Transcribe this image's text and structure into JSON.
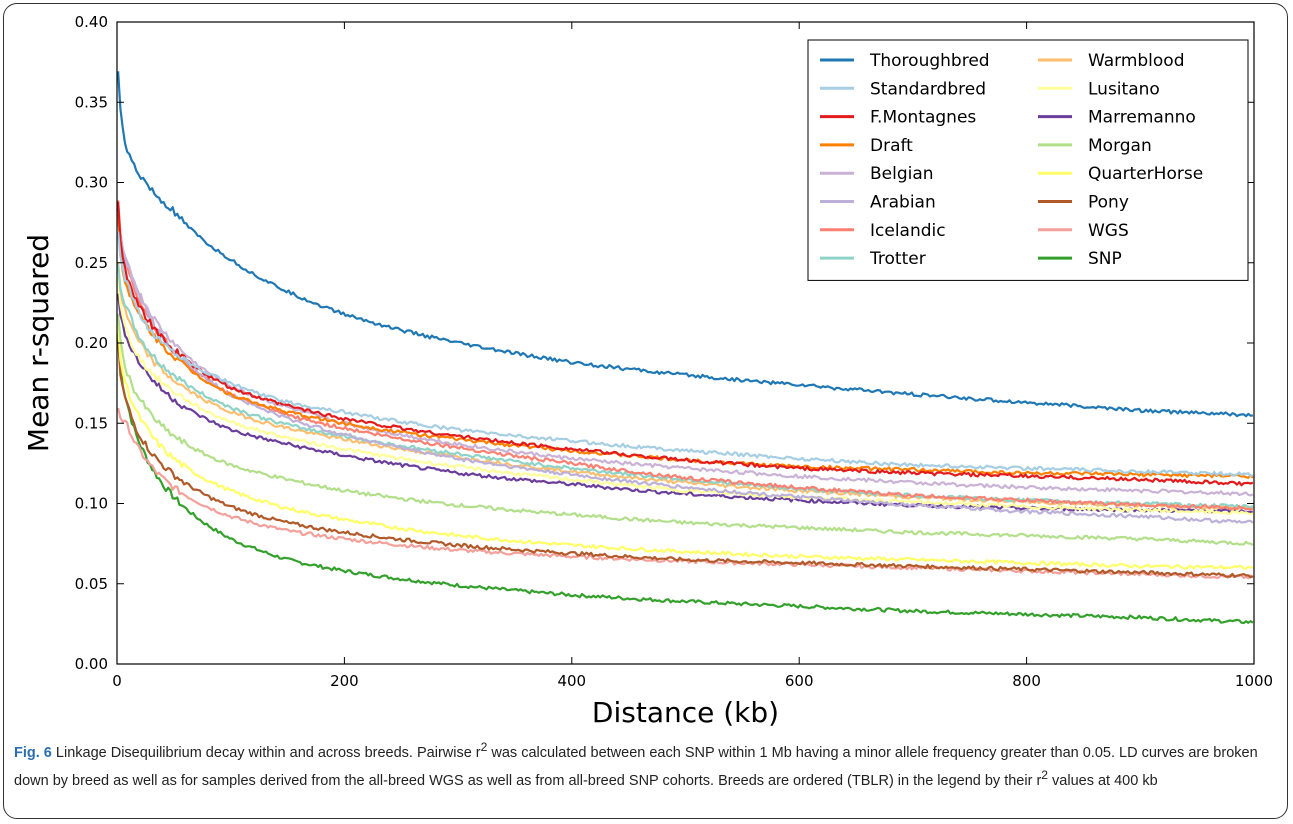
{
  "figure": {
    "label": "Fig. 6",
    "caption_parts": {
      "t1": " Linkage Disequilibrium decay within and across breeds. Pairwise r",
      "sup1": "2",
      "t2": " was calculated between each SNP within 1 Mb having a minor allele frequency greater than 0.05. LD curves are broken down by breed as well as for samples derived from the all-breed WGS as well as from all-breed SNP cohorts. Breeds are ordered (TBLR) in the legend by their r",
      "sup2": "2",
      "t3": " values at 400 kb"
    }
  },
  "chart_data": {
    "type": "line",
    "title": "",
    "xlabel": "Distance (kb)",
    "ylabel": "Mean r-squared",
    "xlim": [
      0,
      1000
    ],
    "ylim": [
      0.0,
      0.4
    ],
    "xticks": [
      0,
      200,
      400,
      600,
      800,
      1000
    ],
    "yticks": [
      "0.00",
      "0.05",
      "0.10",
      "0.15",
      "0.20",
      "0.25",
      "0.30",
      "0.35",
      "0.40"
    ],
    "grid": false,
    "legend_position": "top-right",
    "legend_columns": 2,
    "x": [
      1,
      10,
      25,
      50,
      100,
      150,
      200,
      300,
      400,
      500,
      600,
      700,
      800,
      900,
      1000
    ],
    "series": [
      {
        "name": "Thoroughbred",
        "color": "#1f78b4",
        "values": [
          0.37,
          0.318,
          0.3,
          0.282,
          0.252,
          0.232,
          0.218,
          0.2,
          0.188,
          0.18,
          0.174,
          0.168,
          0.163,
          0.158,
          0.155
        ]
      },
      {
        "name": "Standardbred",
        "color": "#a6cee3",
        "values": [
          0.27,
          0.235,
          0.212,
          0.195,
          0.175,
          0.163,
          0.157,
          0.146,
          0.139,
          0.133,
          0.128,
          0.124,
          0.122,
          0.12,
          0.118
        ]
      },
      {
        "name": "F.Montagnes",
        "color": "#e31a1c",
        "values": [
          0.29,
          0.238,
          0.217,
          0.196,
          0.172,
          0.161,
          0.153,
          0.142,
          0.134,
          0.127,
          0.122,
          0.119,
          0.117,
          0.115,
          0.112
        ]
      },
      {
        "name": "Draft",
        "color": "#ff7f00",
        "values": [
          0.28,
          0.232,
          0.212,
          0.192,
          0.168,
          0.157,
          0.15,
          0.14,
          0.133,
          0.127,
          0.123,
          0.121,
          0.119,
          0.118,
          0.117
        ]
      },
      {
        "name": "Belgian",
        "color": "#cab2d6",
        "values": [
          0.28,
          0.248,
          0.224,
          0.2,
          0.173,
          0.16,
          0.15,
          0.137,
          0.128,
          0.122,
          0.117,
          0.113,
          0.11,
          0.108,
          0.106
        ]
      },
      {
        "name": "Arabian",
        "color": "#bcb0d8",
        "values": [
          0.28,
          0.25,
          0.222,
          0.196,
          0.168,
          0.153,
          0.143,
          0.128,
          0.118,
          0.11,
          0.104,
          0.099,
          0.095,
          0.092,
          0.088
        ]
      },
      {
        "name": "Icelandic",
        "color": "#fb8072",
        "values": [
          0.29,
          0.245,
          0.22,
          0.195,
          0.168,
          0.155,
          0.147,
          0.135,
          0.125,
          0.116,
          0.11,
          0.105,
          0.102,
          0.099,
          0.097
        ]
      },
      {
        "name": "Trotter",
        "color": "#8dd3c7",
        "values": [
          0.25,
          0.22,
          0.198,
          0.18,
          0.16,
          0.149,
          0.142,
          0.131,
          0.122,
          0.115,
          0.109,
          0.105,
          0.102,
          0.1,
          0.098
        ]
      },
      {
        "name": "Warmblood",
        "color": "#fdbf6f",
        "values": [
          0.25,
          0.215,
          0.195,
          0.177,
          0.157,
          0.147,
          0.14,
          0.129,
          0.12,
          0.113,
          0.108,
          0.104,
          0.101,
          0.099,
          0.097
        ]
      },
      {
        "name": "Lusitano",
        "color": "#ffff99",
        "values": [
          0.24,
          0.205,
          0.186,
          0.17,
          0.151,
          0.141,
          0.134,
          0.123,
          0.115,
          0.108,
          0.104,
          0.101,
          0.098,
          0.096,
          0.094
        ]
      },
      {
        "name": "Marremanno",
        "color": "#6a3d9a",
        "values": [
          0.23,
          0.202,
          0.183,
          0.165,
          0.146,
          0.137,
          0.13,
          0.119,
          0.112,
          0.106,
          0.102,
          0.099,
          0.097,
          0.096,
          0.095
        ]
      },
      {
        "name": "Morgan",
        "color": "#b2df8a",
        "values": [
          0.22,
          0.18,
          0.16,
          0.142,
          0.124,
          0.115,
          0.108,
          0.099,
          0.093,
          0.088,
          0.085,
          0.082,
          0.08,
          0.078,
          0.075
        ]
      },
      {
        "name": "QuarterHorse",
        "color": "#ffff66",
        "values": [
          0.21,
          0.17,
          0.148,
          0.128,
          0.108,
          0.097,
          0.09,
          0.08,
          0.074,
          0.07,
          0.067,
          0.065,
          0.063,
          0.061,
          0.06
        ]
      },
      {
        "name": "Pony",
        "color": "#b15928",
        "values": [
          0.2,
          0.16,
          0.137,
          0.118,
          0.098,
          0.088,
          0.082,
          0.074,
          0.069,
          0.065,
          0.063,
          0.061,
          0.059,
          0.057,
          0.055
        ]
      },
      {
        "name": "WGS",
        "color": "#f4a09a",
        "values": [
          0.16,
          0.148,
          0.128,
          0.11,
          0.092,
          0.083,
          0.078,
          0.071,
          0.067,
          0.064,
          0.062,
          0.06,
          0.058,
          0.056,
          0.054
        ]
      },
      {
        "name": "SNP",
        "color": "#33a02c",
        "values": [
          0.21,
          0.16,
          0.13,
          0.104,
          0.078,
          0.065,
          0.058,
          0.049,
          0.043,
          0.039,
          0.036,
          0.033,
          0.031,
          0.029,
          0.026
        ]
      }
    ]
  }
}
